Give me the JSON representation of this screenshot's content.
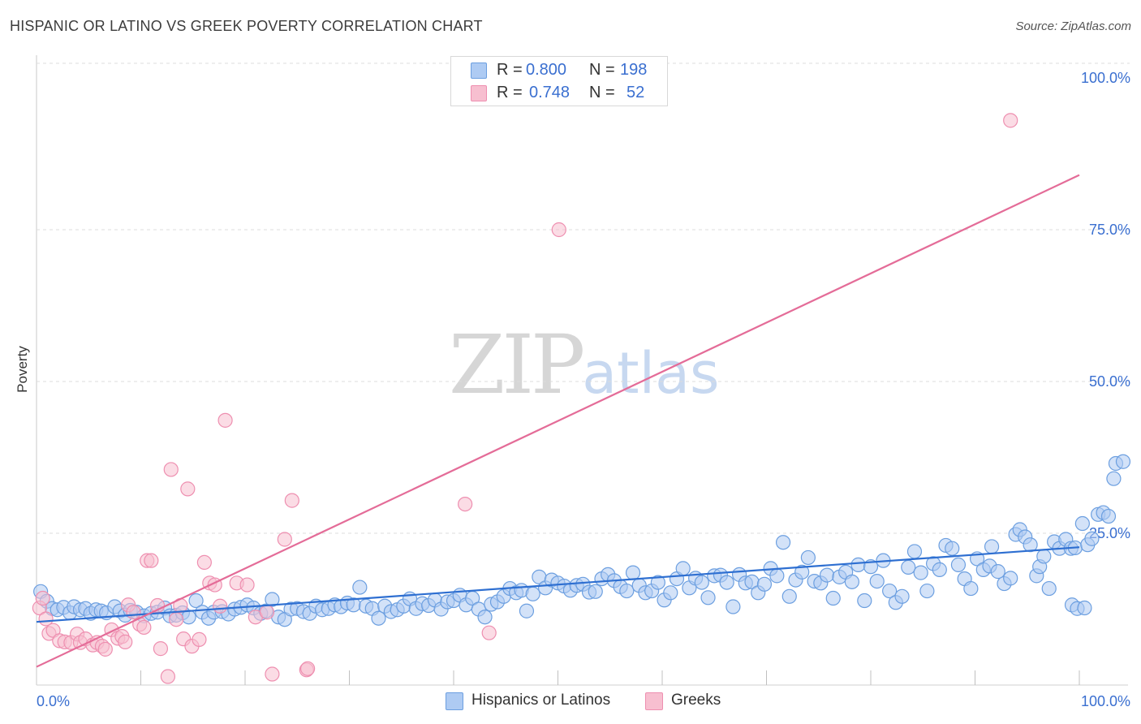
{
  "title": "HISPANIC OR LATINO VS GREEK POVERTY CORRELATION CHART",
  "source": "Source: ZipAtlas.com",
  "watermark": {
    "zip": "ZIP",
    "atlas": "atlas"
  },
  "legend_top": {
    "rows": [
      {
        "r_label": "R =",
        "r_value": "0.800",
        "n_label": "N =",
        "n_value": "198"
      },
      {
        "r_label": "R =",
        "r_value": "0.748",
        "n_label": "N =",
        "n_value": "52"
      }
    ]
  },
  "legend_bottom": {
    "items": [
      "Hispanics or Latinos",
      "Greeks"
    ]
  },
  "colors": {
    "blue_fill": "#aecbf3",
    "blue_stroke": "#6c9fe0",
    "blue_line": "#2e6fd1",
    "pink_fill": "#f7bfd0",
    "pink_stroke": "#ee8fb0",
    "pink_line": "#e46c98",
    "axis_text": "#3a6fd0",
    "grid": "#dcdcdc"
  },
  "chart_data": {
    "type": "scatter",
    "title": "HISPANIC OR LATINO VS GREEK POVERTY CORRELATION CHART",
    "xlabel": "",
    "ylabel": "Poverty",
    "xlim": [
      0,
      100
    ],
    "ylim": [
      0,
      100
    ],
    "x_tick_labels": [
      "0.0%",
      "100.0%"
    ],
    "y_tick_values": [
      25,
      50,
      75,
      100
    ],
    "y_tick_labels": [
      "25.0%",
      "50.0%",
      "75.0%",
      "100.0%"
    ],
    "grid": true,
    "series": [
      {
        "name": "Hispanics or Latinos",
        "r": 0.8,
        "n": 198,
        "trend": {
          "x": [
            0,
            100
          ],
          "y": [
            10.4,
            22.7
          ]
        },
        "points": [
          [
            0.4,
            15.4
          ],
          [
            1.0,
            13.8
          ],
          [
            1.5,
            12.6
          ],
          [
            2.0,
            12.4
          ],
          [
            2.6,
            12.8
          ],
          [
            3.2,
            11.9
          ],
          [
            3.6,
            12.9
          ],
          [
            4.2,
            12.4
          ],
          [
            4.7,
            12.6
          ],
          [
            5.2,
            11.8
          ],
          [
            5.7,
            12.4
          ],
          [
            6.2,
            12.2
          ],
          [
            6.7,
            11.9
          ],
          [
            7.5,
            12.9
          ],
          [
            8.0,
            12.2
          ],
          [
            8.5,
            11.5
          ],
          [
            9.0,
            12.3
          ],
          [
            9.6,
            12.0
          ],
          [
            10.3,
            11.4
          ],
          [
            11.0,
            11.8
          ],
          [
            11.6,
            12.0
          ],
          [
            12.3,
            12.7
          ],
          [
            12.8,
            11.4
          ],
          [
            13.4,
            11.5
          ],
          [
            14.0,
            11.9
          ],
          [
            14.6,
            11.2
          ],
          [
            15.3,
            13.9
          ],
          [
            15.9,
            12.0
          ],
          [
            16.5,
            11.0
          ],
          [
            17.0,
            12.0
          ],
          [
            17.8,
            12.1
          ],
          [
            18.4,
            11.7
          ],
          [
            19.0,
            12.5
          ],
          [
            19.6,
            12.8
          ],
          [
            20.2,
            13.2
          ],
          [
            20.8,
            12.7
          ],
          [
            21.5,
            11.8
          ],
          [
            22.0,
            12.2
          ],
          [
            22.6,
            14.1
          ],
          [
            23.2,
            11.2
          ],
          [
            23.8,
            10.8
          ],
          [
            24.4,
            12.5
          ],
          [
            25.0,
            12.6
          ],
          [
            25.6,
            12.1
          ],
          [
            26.2,
            11.8
          ],
          [
            26.8,
            13.0
          ],
          [
            27.4,
            12.4
          ],
          [
            28.0,
            12.6
          ],
          [
            28.6,
            13.2
          ],
          [
            29.2,
            12.9
          ],
          [
            29.8,
            13.5
          ],
          [
            30.4,
            13.2
          ],
          [
            31.0,
            16.1
          ],
          [
            31.6,
            13.0
          ],
          [
            32.2,
            12.6
          ],
          [
            32.8,
            11.0
          ],
          [
            33.4,
            13.0
          ],
          [
            34.0,
            12.1
          ],
          [
            34.6,
            12.4
          ],
          [
            35.2,
            13.0
          ],
          [
            35.8,
            14.2
          ],
          [
            36.4,
            12.6
          ],
          [
            37.0,
            13.4
          ],
          [
            37.6,
            13.1
          ],
          [
            38.2,
            14.0
          ],
          [
            38.8,
            12.5
          ],
          [
            39.4,
            13.7
          ],
          [
            40.0,
            13.9
          ],
          [
            40.6,
            14.8
          ],
          [
            41.2,
            13.2
          ],
          [
            41.8,
            14.3
          ],
          [
            42.4,
            12.5
          ],
          [
            43.0,
            11.2
          ],
          [
            43.6,
            13.3
          ],
          [
            44.2,
            13.7
          ],
          [
            44.8,
            14.6
          ],
          [
            45.4,
            15.9
          ],
          [
            46.0,
            15.2
          ],
          [
            46.5,
            15.6
          ],
          [
            47.0,
            12.2
          ],
          [
            47.6,
            15.0
          ],
          [
            48.2,
            17.8
          ],
          [
            48.8,
            16.0
          ],
          [
            49.4,
            17.3
          ],
          [
            50.0,
            16.8
          ],
          [
            50.6,
            16.3
          ],
          [
            51.2,
            15.6
          ],
          [
            51.8,
            16.4
          ],
          [
            52.4,
            16.6
          ],
          [
            53.0,
            15.3
          ],
          [
            53.6,
            15.4
          ],
          [
            54.2,
            17.5
          ],
          [
            54.8,
            18.2
          ],
          [
            55.4,
            17.2
          ],
          [
            56.0,
            16.2
          ],
          [
            56.6,
            15.5
          ],
          [
            57.2,
            18.5
          ],
          [
            57.8,
            16.4
          ],
          [
            58.4,
            15.2
          ],
          [
            59.0,
            15.5
          ],
          [
            59.6,
            16.9
          ],
          [
            60.2,
            14.0
          ],
          [
            60.8,
            15.2
          ],
          [
            61.4,
            17.5
          ],
          [
            62.0,
            19.2
          ],
          [
            62.6,
            16.0
          ],
          [
            63.2,
            17.6
          ],
          [
            63.8,
            16.9
          ],
          [
            64.4,
            14.4
          ],
          [
            65.0,
            18.0
          ],
          [
            65.6,
            18.1
          ],
          [
            66.2,
            16.9
          ],
          [
            66.8,
            12.9
          ],
          [
            67.4,
            18.2
          ],
          [
            68.0,
            16.8
          ],
          [
            68.6,
            17.0
          ],
          [
            69.2,
            15.2
          ],
          [
            69.8,
            16.6
          ],
          [
            70.4,
            19.2
          ],
          [
            71.0,
            18.0
          ],
          [
            71.6,
            23.5
          ],
          [
            72.2,
            14.6
          ],
          [
            72.8,
            17.3
          ],
          [
            73.4,
            18.6
          ],
          [
            74.0,
            21.0
          ],
          [
            74.6,
            17.1
          ],
          [
            75.2,
            16.8
          ],
          [
            75.8,
            18.1
          ],
          [
            76.4,
            14.3
          ],
          [
            77.0,
            17.8
          ],
          [
            77.6,
            18.6
          ],
          [
            78.2,
            17.0
          ],
          [
            78.8,
            19.8
          ],
          [
            79.4,
            13.9
          ],
          [
            80.0,
            19.5
          ],
          [
            80.6,
            17.1
          ],
          [
            81.2,
            20.5
          ],
          [
            81.8,
            15.5
          ],
          [
            82.4,
            13.6
          ],
          [
            83.0,
            14.6
          ],
          [
            83.6,
            19.4
          ],
          [
            84.2,
            22.0
          ],
          [
            84.8,
            18.5
          ],
          [
            85.4,
            15.5
          ],
          [
            86.0,
            20.0
          ],
          [
            86.6,
            19.0
          ],
          [
            87.2,
            23.0
          ],
          [
            87.8,
            22.5
          ],
          [
            88.4,
            19.8
          ],
          [
            89.0,
            17.5
          ],
          [
            89.6,
            15.9
          ],
          [
            90.2,
            20.8
          ],
          [
            90.8,
            19.0
          ],
          [
            91.4,
            19.6
          ],
          [
            91.6,
            22.8
          ],
          [
            92.2,
            18.7
          ],
          [
            92.8,
            16.7
          ],
          [
            93.4,
            17.6
          ],
          [
            93.9,
            24.8
          ],
          [
            94.3,
            25.6
          ],
          [
            94.8,
            24.4
          ],
          [
            95.3,
            23.1
          ],
          [
            95.9,
            18.0
          ],
          [
            96.2,
            19.5
          ],
          [
            96.6,
            21.2
          ],
          [
            97.1,
            15.9
          ],
          [
            97.6,
            23.6
          ],
          [
            98.1,
            22.5
          ],
          [
            98.7,
            24.0
          ],
          [
            99.2,
            22.5
          ],
          [
            99.6,
            22.6
          ],
          [
            100.3,
            26.6
          ],
          [
            100.8,
            23.1
          ],
          [
            101.2,
            24.1
          ],
          [
            101.8,
            28.1
          ],
          [
            102.3,
            28.4
          ],
          [
            102.8,
            27.8
          ],
          [
            103.3,
            34.0
          ],
          [
            103.5,
            36.5
          ],
          [
            104.2,
            36.8
          ],
          [
            99.3,
            13.2
          ],
          [
            99.8,
            12.6
          ],
          [
            100.5,
            12.7
          ]
        ]
      },
      {
        "name": "Greeks",
        "r": 0.748,
        "n": 52,
        "trend": {
          "x": [
            0,
            100
          ],
          "y": [
            3.0,
            84.0
          ]
        },
        "points": [
          [
            0.3,
            12.7
          ],
          [
            0.6,
            14.3
          ],
          [
            0.9,
            10.9
          ],
          [
            1.2,
            8.5
          ],
          [
            1.6,
            9.0
          ],
          [
            2.2,
            7.3
          ],
          [
            2.7,
            7.1
          ],
          [
            3.3,
            7.0
          ],
          [
            3.9,
            8.4
          ],
          [
            4.2,
            7.0
          ],
          [
            4.7,
            7.6
          ],
          [
            5.4,
            6.6
          ],
          [
            5.8,
            7.0
          ],
          [
            6.3,
            6.4
          ],
          [
            6.6,
            5.9
          ],
          [
            7.2,
            9.1
          ],
          [
            7.8,
            7.7
          ],
          [
            8.2,
            8.0
          ],
          [
            8.5,
            7.1
          ],
          [
            8.8,
            13.2
          ],
          [
            9.3,
            12.0
          ],
          [
            9.9,
            10.0
          ],
          [
            10.3,
            9.5
          ],
          [
            10.6,
            20.5
          ],
          [
            11.0,
            20.5
          ],
          [
            11.6,
            13.1
          ],
          [
            11.9,
            6.0
          ],
          [
            12.6,
            1.4
          ],
          [
            12.9,
            35.5
          ],
          [
            13.4,
            10.8
          ],
          [
            13.8,
            13.1
          ],
          [
            14.1,
            7.6
          ],
          [
            14.5,
            32.3
          ],
          [
            14.9,
            6.4
          ],
          [
            15.6,
            7.5
          ],
          [
            16.1,
            20.2
          ],
          [
            16.6,
            16.8
          ],
          [
            17.1,
            16.5
          ],
          [
            17.6,
            13.0
          ],
          [
            18.1,
            43.6
          ],
          [
            19.2,
            16.8
          ],
          [
            20.2,
            16.5
          ],
          [
            21.0,
            11.2
          ],
          [
            22.1,
            12.0
          ],
          [
            22.6,
            1.8
          ],
          [
            23.8,
            24.0
          ],
          [
            24.5,
            30.4
          ],
          [
            25.9,
            2.5
          ],
          [
            26.0,
            2.7
          ],
          [
            41.1,
            29.8
          ],
          [
            43.4,
            8.6
          ],
          [
            50.1,
            75.0
          ],
          [
            93.4,
            93.0
          ]
        ]
      }
    ]
  }
}
